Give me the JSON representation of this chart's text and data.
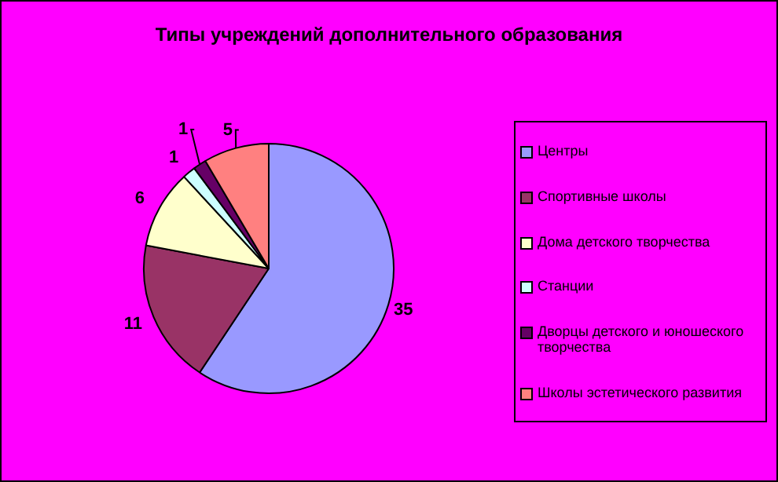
{
  "chart_data": {
    "type": "pie",
    "title": "Типы учреждений дополнительного образования",
    "categories": [
      "Центры",
      "Спортивные школы",
      "Дома детского творчества",
      "Станции",
      "Дворцы детского и юношеского творчества",
      "Школы эстетического развития"
    ],
    "values": [
      35,
      11,
      6,
      1,
      1,
      5
    ],
    "colors": [
      "#9999ff",
      "#993366",
      "#ffffcc",
      "#ccffff",
      "#660066",
      "#ff8080"
    ],
    "data_labels": true,
    "legend": "right"
  }
}
